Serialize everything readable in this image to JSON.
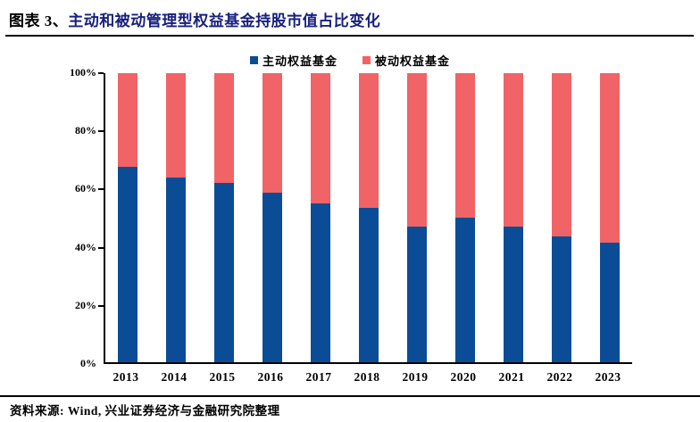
{
  "title": {
    "prefix": "图表 3、",
    "text": "主动和被动管理型权益基金持股市值占比变化"
  },
  "footer": {
    "source": "资料来源: Wind, 兴业证券经济与金融研究院整理"
  },
  "colors": {
    "active_blue": "#0A4D96",
    "passive_red": "#F06366",
    "title_accent": "#18207E",
    "axis_black": "#000000"
  },
  "legend": [
    {
      "label": "主动权益基金",
      "color": "#0A4D96"
    },
    {
      "label": "被动权益基金",
      "color": "#F06366"
    }
  ],
  "chart_data": {
    "type": "bar",
    "stacked": true,
    "title": "主动和被动管理型权益基金持股市值占比变化",
    "categories": [
      "2013",
      "2014",
      "2015",
      "2016",
      "2017",
      "2018",
      "2019",
      "2020",
      "2021",
      "2022",
      "2023"
    ],
    "series": [
      {
        "name": "主动权益基金",
        "color": "#0A4D96",
        "values": [
          67.5,
          64.0,
          62.0,
          58.5,
          55.0,
          53.5,
          47.0,
          50.0,
          47.0,
          43.5,
          41.5
        ]
      },
      {
        "name": "被动权益基金",
        "color": "#F06366",
        "values": [
          32.5,
          36.0,
          38.0,
          41.5,
          45.0,
          46.5,
          53.0,
          50.0,
          53.0,
          56.5,
          58.5
        ]
      }
    ],
    "ylabel": "",
    "xlabel": "",
    "ylim": [
      0,
      100
    ],
    "ytick_values": [
      0,
      20,
      40,
      60,
      80,
      100
    ],
    "ytick_labels": [
      "0%",
      "20%",
      "40%",
      "60%",
      "80%",
      "100%"
    ],
    "grid": false,
    "legend_position": "top-center"
  }
}
